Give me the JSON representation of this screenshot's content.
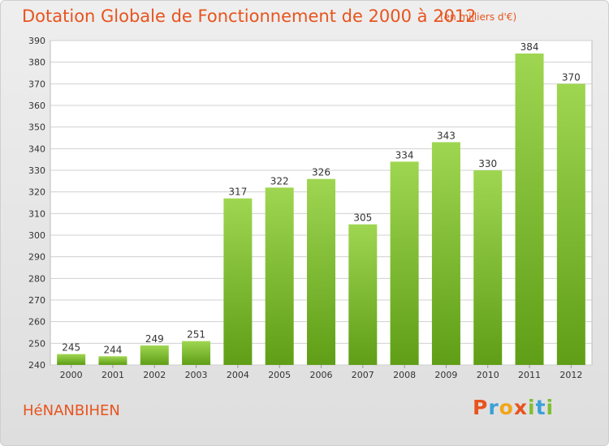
{
  "chart_data": {
    "type": "bar",
    "title": "Dotation Globale de Fonctionnement de 2000 à 2012",
    "subtitle": "(en milliers d'€)",
    "categories": [
      "2000",
      "2001",
      "2002",
      "2003",
      "2004",
      "2005",
      "2006",
      "2007",
      "2008",
      "2009",
      "2010",
      "2011",
      "2012"
    ],
    "values": [
      245,
      244,
      249,
      251,
      317,
      322,
      326,
      305,
      334,
      343,
      330,
      384,
      370
    ],
    "ylim": [
      240,
      390
    ],
    "yticks": [
      240,
      250,
      260,
      270,
      280,
      290,
      300,
      310,
      320,
      330,
      340,
      350,
      360,
      370,
      380,
      390
    ],
    "grid": true,
    "bar_color": "#7fbf30"
  },
  "footer": {
    "place": "HéNANBIHEN",
    "logo_letters": [
      {
        "ch": "P",
        "color": "#e8541e"
      },
      {
        "ch": "r",
        "color": "#3aa0d8"
      },
      {
        "ch": "o",
        "color": "#f2a516"
      },
      {
        "ch": "x",
        "color": "#e8541e"
      },
      {
        "ch": "i",
        "color": "#7fbf30"
      },
      {
        "ch": "t",
        "color": "#3aa0d8"
      },
      {
        "ch": "i",
        "color": "#7fbf30"
      }
    ]
  }
}
